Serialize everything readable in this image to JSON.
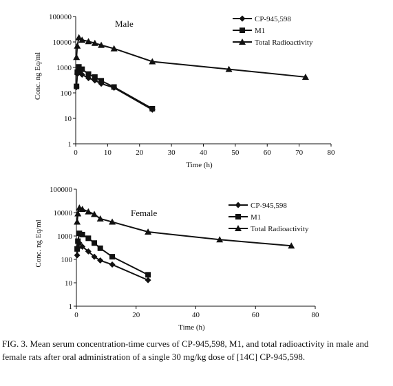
{
  "chart_data": [
    {
      "type": "line",
      "title": "Male",
      "xlabel": "Time (h)",
      "ylabel": "Conc. ng Eq/ml",
      "xlim": [
        0,
        80
      ],
      "ylim": [
        1,
        100000
      ],
      "yscale": "log",
      "xticks": [
        "0",
        "10",
        "20",
        "30",
        "40",
        "50",
        "60",
        "70",
        "80"
      ],
      "yticks": [
        "1",
        "10",
        "100",
        "1000",
        "10000",
        "100000"
      ],
      "legend_position": "top-right",
      "series": [
        {
          "name": "CP-945,598",
          "marker": "diamond",
          "x": [
            0.25,
            0.5,
            1,
            2,
            4,
            6,
            8,
            12,
            24
          ],
          "y": [
            170,
            550,
            650,
            520,
            380,
            310,
            230,
            160,
            22
          ]
        },
        {
          "name": "M1",
          "marker": "square",
          "x": [
            0.25,
            0.5,
            1,
            2,
            4,
            6,
            8,
            12,
            24
          ],
          "y": [
            180,
            650,
            1050,
            850,
            550,
            420,
            300,
            170,
            24
          ]
        },
        {
          "name": "Total Radioactivity",
          "marker": "triangle",
          "x": [
            0.25,
            0.5,
            1,
            2,
            4,
            6,
            8,
            12,
            24,
            48,
            72
          ],
          "y": [
            2500,
            7000,
            15000,
            12000,
            10500,
            9000,
            7500,
            5500,
            1700,
            850,
            420
          ]
        }
      ]
    },
    {
      "type": "line",
      "title": "Female",
      "xlabel": "Time (h)",
      "ylabel": "Conc. ng Eq/ml",
      "xlim": [
        0,
        80
      ],
      "ylim": [
        1,
        100000
      ],
      "yscale": "log",
      "xticks": [
        "0",
        "20",
        "40",
        "60",
        "80"
      ],
      "yticks": [
        "1",
        "10",
        "100",
        "1000",
        "10000",
        "100000"
      ],
      "legend_position": "top-right",
      "series": [
        {
          "name": "CP-945,598",
          "marker": "diamond",
          "x": [
            0.25,
            0.5,
            1,
            2,
            4,
            6,
            8,
            12,
            24
          ],
          "y": [
            150,
            300,
            500,
            350,
            220,
            130,
            90,
            60,
            13
          ]
        },
        {
          "name": "M1",
          "marker": "square",
          "x": [
            0.25,
            0.5,
            1,
            2,
            4,
            6,
            8,
            12,
            24
          ],
          "y": [
            280,
            600,
            1300,
            1150,
            800,
            500,
            300,
            130,
            22
          ]
        },
        {
          "name": "Total Radioactivity",
          "marker": "triangle",
          "x": [
            0.25,
            0.5,
            1,
            2,
            4,
            6,
            8,
            12,
            24,
            48,
            72
          ],
          "y": [
            4000,
            9000,
            16000,
            14000,
            11000,
            8500,
            5500,
            4000,
            1500,
            700,
            380
          ]
        }
      ]
    }
  ],
  "caption": "FIG. 3. Mean serum concentration-time curves of CP-945,598, M1, and total radioactivity in male and female rats after oral administration of a single 30 mg/kg dose of [14C] CP-945,598."
}
